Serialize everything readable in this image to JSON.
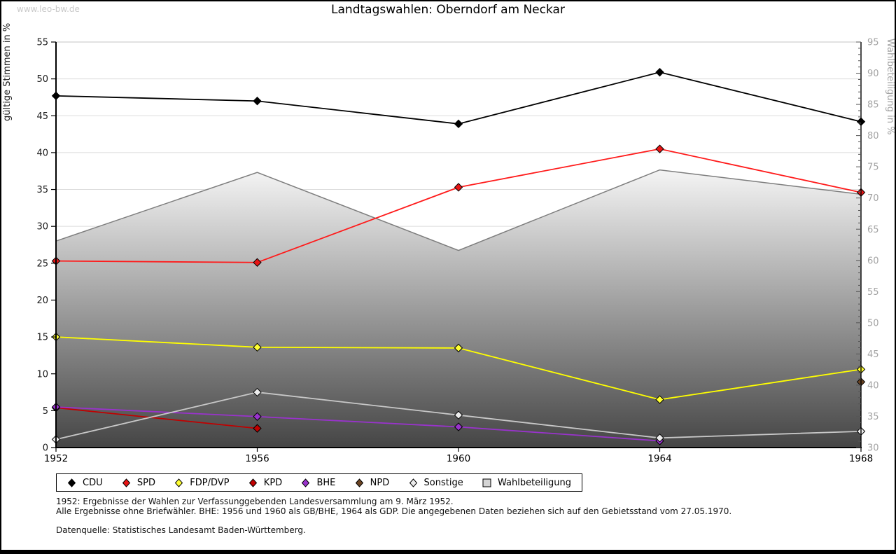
{
  "page": {
    "watermark": "www.leo-bw.de",
    "title": "Landtagswahlen: Oberndorf am Neckar"
  },
  "chart_data": {
    "type": "line",
    "title": "Landtagswahlen: Oberndorf am Neckar",
    "x_categories": [
      "1952",
      "1956",
      "1960",
      "1964",
      "1968"
    ],
    "left_axis": {
      "label": "gültige Stimmen in %",
      "min": 0,
      "max": 55,
      "tick_step": 5,
      "ticks": [
        0,
        5,
        10,
        15,
        20,
        25,
        30,
        35,
        40,
        45,
        50,
        55
      ]
    },
    "right_axis": {
      "label": "Wahlbeteiligung in %",
      "min": 30,
      "max": 95,
      "tick_step": 5,
      "minor_tick_step": 1,
      "ticks": [
        30,
        35,
        40,
        45,
        50,
        55,
        60,
        65,
        70,
        75,
        80,
        85,
        90,
        95
      ]
    },
    "grid": true,
    "legend_position": "bottom",
    "series": [
      {
        "name": "CDU",
        "type": "line",
        "axis": "left",
        "color": "#000000",
        "marker": "diamond",
        "marker_fill": "#000000",
        "values": [
          47.7,
          47.0,
          43.9,
          50.9,
          44.2
        ]
      },
      {
        "name": "SPD",
        "type": "line",
        "axis": "left",
        "color": "#ff1a1a",
        "marker": "diamond",
        "marker_fill": "#e81515",
        "values": [
          25.3,
          25.1,
          35.3,
          40.5,
          34.6
        ]
      },
      {
        "name": "FDP/DVP",
        "type": "line",
        "axis": "left",
        "color": "#ffff00",
        "marker": "diamond",
        "marker_fill": "#ffff33",
        "values": [
          15.0,
          13.6,
          13.5,
          6.5,
          10.6
        ]
      },
      {
        "name": "KPD",
        "type": "line",
        "axis": "left",
        "color": "#c00000",
        "marker": "diamond",
        "marker_fill": "#c00000",
        "values": [
          5.4,
          2.6,
          null,
          null,
          null
        ]
      },
      {
        "name": "BHE",
        "type": "line",
        "axis": "left",
        "color": "#9933cc",
        "marker": "diamond",
        "marker_fill": "#9933cc",
        "values": [
          5.5,
          4.2,
          2.8,
          0.9,
          null
        ]
      },
      {
        "name": "NPD",
        "type": "line",
        "axis": "left",
        "color": "#6b4423",
        "marker": "diamond",
        "marker_fill": "#6b4423",
        "values": [
          null,
          null,
          null,
          null,
          8.9
        ]
      },
      {
        "name": "Sonstige",
        "type": "line",
        "axis": "left",
        "color": "#c8c8c8",
        "marker": "diamond",
        "marker_fill": "#ececec",
        "values": [
          1.1,
          7.5,
          4.4,
          1.3,
          2.2
        ]
      },
      {
        "name": "Wahlbeteiligung",
        "type": "area",
        "axis": "right",
        "color": "#7d7d7d",
        "fill_top": "#fafafa",
        "fill_bottom": "#454545",
        "swatch_fill": "#d4d4d4",
        "values": [
          63.1,
          74.1,
          61.6,
          74.5,
          70.6
        ]
      }
    ]
  },
  "footnotes": [
    "1952: Ergebnisse der Wahlen zur Verfassunggebenden Landesversammlung am 9. März 1952.",
    "Alle Ergebnisse ohne Briefwähler. BHE: 1956 und 1960 als GB/BHE, 1964 als GDP. Die angegebenen Daten beziehen sich auf den Gebietsstand vom 27.05.1970.",
    "Datenquelle: Statistisches Landesamt Baden-Württemberg."
  ]
}
